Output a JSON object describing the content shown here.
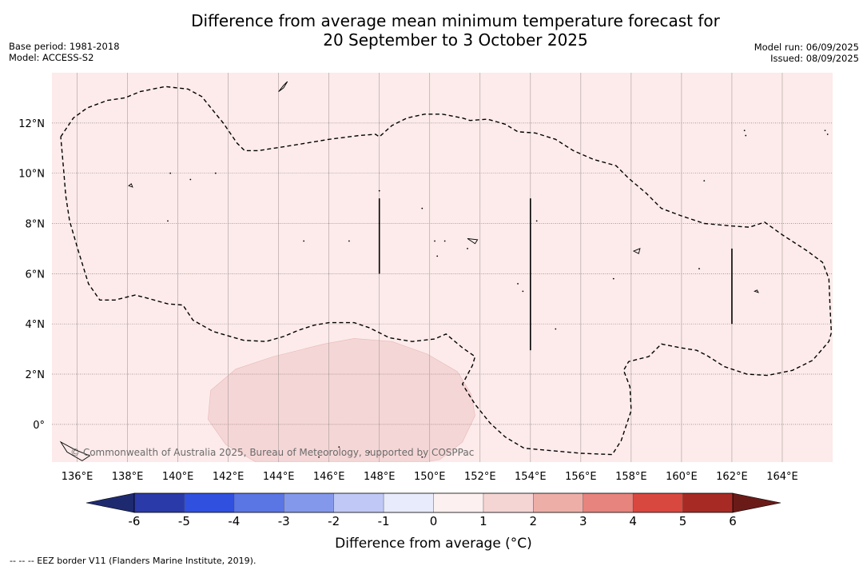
{
  "title_line1": "Difference from average mean minimum temperature forecast for",
  "title_line2": "20 September to 3 October 2025",
  "base_period": "Base period: 1981-2018",
  "model": "Model: ACCESS-S2",
  "model_run": "Model run: 06/09/2025",
  "issued": "Issued: 08/09/2025",
  "copyright": "© Commonwealth of Australia 2025, Bureau of Meteorology, supported by COSPPac",
  "footnote": "--  --  -- EEZ border V11 (Flanders Marine Institute, 2019).",
  "colorbar": {
    "label": "Difference from average (°C)",
    "ticks": [
      "-6",
      "-5",
      "-4",
      "-3",
      "-2",
      "-1",
      "0",
      "1",
      "2",
      "3",
      "4",
      "5",
      "6"
    ],
    "colors": [
      "#2a3aa8",
      "#3050e0",
      "#5a75e4",
      "#8498eb",
      "#c0c9f5",
      "#e8ebfb",
      "#fdf0f0",
      "#f5d4d4",
      "#eeaea8",
      "#e7847d",
      "#d9483f",
      "#a82a25"
    ],
    "under_color": "#1e2a70",
    "over_color": "#6a1b18"
  },
  "map": {
    "lon_range": [
      135,
      166
    ],
    "lat_range": [
      -1.5,
      14
    ],
    "x_ticks": [
      {
        "lon": 136,
        "label": "136°E"
      },
      {
        "lon": 138,
        "label": "138°E"
      },
      {
        "lon": 140,
        "label": "140°E"
      },
      {
        "lon": 142,
        "label": "142°E"
      },
      {
        "lon": 144,
        "label": "144°E"
      },
      {
        "lon": 146,
        "label": "146°E"
      },
      {
        "lon": 148,
        "label": "148°E"
      },
      {
        "lon": 150,
        "label": "150°E"
      },
      {
        "lon": 152,
        "label": "152°E"
      },
      {
        "lon": 154,
        "label": "154°E"
      },
      {
        "lon": 156,
        "label": "156°E"
      },
      {
        "lon": 158,
        "label": "158°E"
      },
      {
        "lon": 160,
        "label": "160°E"
      },
      {
        "lon": 162,
        "label": "162°E"
      },
      {
        "lon": 164,
        "label": "164°E"
      }
    ],
    "y_ticks": [
      {
        "lat": 0,
        "label": "0°"
      },
      {
        "lat": 2,
        "label": "2°N"
      },
      {
        "lat": 4,
        "label": "4°N"
      },
      {
        "lat": 6,
        "label": "6°N"
      },
      {
        "lat": 8,
        "label": "8°N"
      },
      {
        "lat": 10,
        "label": "10°N"
      },
      {
        "lat": 12,
        "label": "12°N"
      }
    ],
    "background_color": "#fcebea",
    "warm_region_color": "#f5d6d6",
    "eez_border": [
      [
        135.35,
        11.45
      ],
      [
        135.85,
        12.2
      ],
      [
        136.4,
        12.6
      ],
      [
        137.2,
        12.9
      ],
      [
        137.9,
        13.0
      ],
      [
        138.5,
        13.25
      ],
      [
        139.5,
        13.45
      ],
      [
        140.4,
        13.35
      ],
      [
        140.95,
        13.05
      ],
      [
        141.8,
        12.0
      ],
      [
        142.35,
        11.2
      ],
      [
        142.65,
        10.9
      ],
      [
        143.2,
        10.9
      ],
      [
        144.5,
        11.1
      ],
      [
        146,
        11.35
      ],
      [
        147.2,
        11.5
      ],
      [
        147.85,
        11.55
      ],
      [
        148.0,
        11.45
      ],
      [
        148.5,
        11.9
      ],
      [
        149.1,
        12.2
      ],
      [
        149.8,
        12.35
      ],
      [
        150.5,
        12.35
      ],
      [
        151.3,
        12.2
      ],
      [
        151.6,
        12.1
      ],
      [
        152.3,
        12.15
      ],
      [
        153.0,
        11.95
      ],
      [
        153.5,
        11.65
      ],
      [
        154.2,
        11.6
      ],
      [
        155.0,
        11.35
      ],
      [
        155.7,
        10.9
      ],
      [
        156.5,
        10.55
      ],
      [
        157.4,
        10.3
      ],
      [
        157.9,
        9.8
      ],
      [
        158.6,
        9.2
      ],
      [
        159.2,
        8.6
      ],
      [
        160.0,
        8.3
      ],
      [
        160.9,
        8.0
      ],
      [
        162.0,
        7.9
      ],
      [
        162.7,
        7.85
      ],
      [
        163.3,
        8.05
      ],
      [
        164.0,
        7.55
      ],
      [
        165.0,
        6.9
      ],
      [
        165.6,
        6.45
      ],
      [
        165.85,
        5.8
      ],
      [
        165.9,
        4.65
      ],
      [
        165.95,
        3.65
      ],
      [
        165.85,
        3.3
      ],
      [
        165.2,
        2.55
      ],
      [
        164.4,
        2.15
      ],
      [
        163.4,
        1.95
      ],
      [
        162.6,
        2.0
      ],
      [
        161.7,
        2.3
      ],
      [
        161.0,
        2.75
      ],
      [
        160.6,
        2.95
      ],
      [
        159.95,
        3.05
      ],
      [
        159.2,
        3.2
      ],
      [
        158.7,
        2.7
      ],
      [
        157.9,
        2.5
      ],
      [
        157.7,
        2.15
      ],
      [
        157.95,
        1.5
      ],
      [
        158.0,
        0.55
      ],
      [
        157.6,
        -0.65
      ],
      [
        157.25,
        -1.2
      ],
      [
        156.0,
        -1.15
      ],
      [
        154.9,
        -1.05
      ],
      [
        153.75,
        -0.95
      ],
      [
        153.0,
        -0.5
      ],
      [
        152.4,
        0.05
      ],
      [
        151.8,
        0.8
      ],
      [
        151.3,
        1.6
      ],
      [
        151.7,
        2.35
      ],
      [
        151.8,
        2.7
      ],
      [
        151.3,
        3.05
      ],
      [
        150.65,
        3.6
      ],
      [
        150.2,
        3.4
      ],
      [
        149.3,
        3.3
      ],
      [
        148.4,
        3.45
      ],
      [
        147.6,
        3.85
      ],
      [
        147.0,
        4.05
      ],
      [
        146.0,
        4.05
      ],
      [
        145.4,
        3.95
      ],
      [
        144.8,
        3.75
      ],
      [
        144.2,
        3.5
      ],
      [
        143.5,
        3.3
      ],
      [
        142.6,
        3.35
      ],
      [
        141.4,
        3.7
      ],
      [
        140.6,
        4.15
      ],
      [
        140.2,
        4.75
      ],
      [
        139.6,
        4.8
      ],
      [
        138.7,
        5.05
      ],
      [
        138.3,
        5.15
      ],
      [
        137.5,
        4.95
      ],
      [
        136.9,
        4.95
      ],
      [
        136.45,
        5.6
      ],
      [
        136.05,
        6.9
      ],
      [
        135.7,
        8.1
      ],
      [
        135.55,
        9.1
      ],
      [
        135.45,
        10.3
      ],
      [
        135.35,
        11.45
      ]
    ],
    "warm_region": [
      [
        141.3,
        1.35
      ],
      [
        142.3,
        2.2
      ],
      [
        143.8,
        2.7
      ],
      [
        145.8,
        3.2
      ],
      [
        147.0,
        3.42
      ],
      [
        148.5,
        3.3
      ],
      [
        149.9,
        2.8
      ],
      [
        151.1,
        2.1
      ],
      [
        151.65,
        1.2
      ],
      [
        151.8,
        0.35
      ],
      [
        151.3,
        -0.7
      ],
      [
        150.4,
        -1.4
      ],
      [
        149.8,
        -1.5
      ],
      [
        143.1,
        -1.5
      ],
      [
        141.9,
        -0.8
      ],
      [
        141.2,
        0.2
      ],
      [
        141.3,
        1.35
      ]
    ],
    "boundary_lines": [
      {
        "lon": 148,
        "lat_from": 6,
        "lat_to": 9
      },
      {
        "lon": 154,
        "lat_from": 2.95,
        "lat_to": 9
      },
      {
        "lon": 162,
        "lat_from": 4,
        "lat_to": 7
      }
    ],
    "islands": [
      [
        [
          144.0,
          13.25
        ],
        [
          144.2,
          13.5
        ],
        [
          144.35,
          13.65
        ],
        [
          144.2,
          13.4
        ],
        [
          144.0,
          13.25
        ]
      ],
      [
        [
          138.05,
          9.5
        ],
        [
          138.15,
          9.58
        ],
        [
          138.2,
          9.45
        ],
        [
          138.05,
          9.5
        ]
      ],
      [
        [
          151.5,
          7.4
        ],
        [
          151.9,
          7.35
        ],
        [
          151.8,
          7.2
        ],
        [
          151.5,
          7.4
        ]
      ],
      [
        [
          158.1,
          6.9
        ],
        [
          158.35,
          7.0
        ],
        [
          158.3,
          6.8
        ],
        [
          158.1,
          6.9
        ]
      ],
      [
        [
          162.9,
          5.3
        ],
        [
          163.0,
          5.35
        ],
        [
          163.05,
          5.25
        ],
        [
          162.9,
          5.3
        ]
      ],
      [
        [
          135.35,
          -0.7
        ],
        [
          135.9,
          -1.0
        ],
        [
          136.5,
          -1.25
        ],
        [
          136.2,
          -1.45
        ],
        [
          135.6,
          -1.1
        ],
        [
          135.35,
          -0.7
        ]
      ]
    ],
    "dots": [
      [
        139.7,
        10.0
      ],
      [
        140.5,
        9.75
      ],
      [
        141.5,
        10.0
      ],
      [
        139.6,
        8.1
      ],
      [
        148.0,
        9.3
      ],
      [
        149.7,
        8.6
      ],
      [
        154.25,
        8.1
      ],
      [
        145.0,
        7.3
      ],
      [
        146.8,
        7.3
      ],
      [
        150.2,
        7.3
      ],
      [
        150.6,
        7.3
      ],
      [
        151.5,
        7.0
      ],
      [
        150.3,
        6.7
      ],
      [
        153.5,
        5.6
      ],
      [
        153.7,
        5.3
      ],
      [
        155.0,
        3.8
      ],
      [
        157.3,
        5.8
      ],
      [
        160.7,
        6.2
      ],
      [
        160.9,
        9.7
      ],
      [
        162.5,
        11.7
      ],
      [
        162.55,
        11.5
      ],
      [
        165.7,
        11.7
      ],
      [
        165.8,
        11.55
      ],
      [
        146.4,
        -0.9
      ],
      [
        147.6,
        -1.1
      ],
      [
        145.6,
        -1.3
      ],
      [
        149.7,
        -1.3
      ]
    ]
  }
}
